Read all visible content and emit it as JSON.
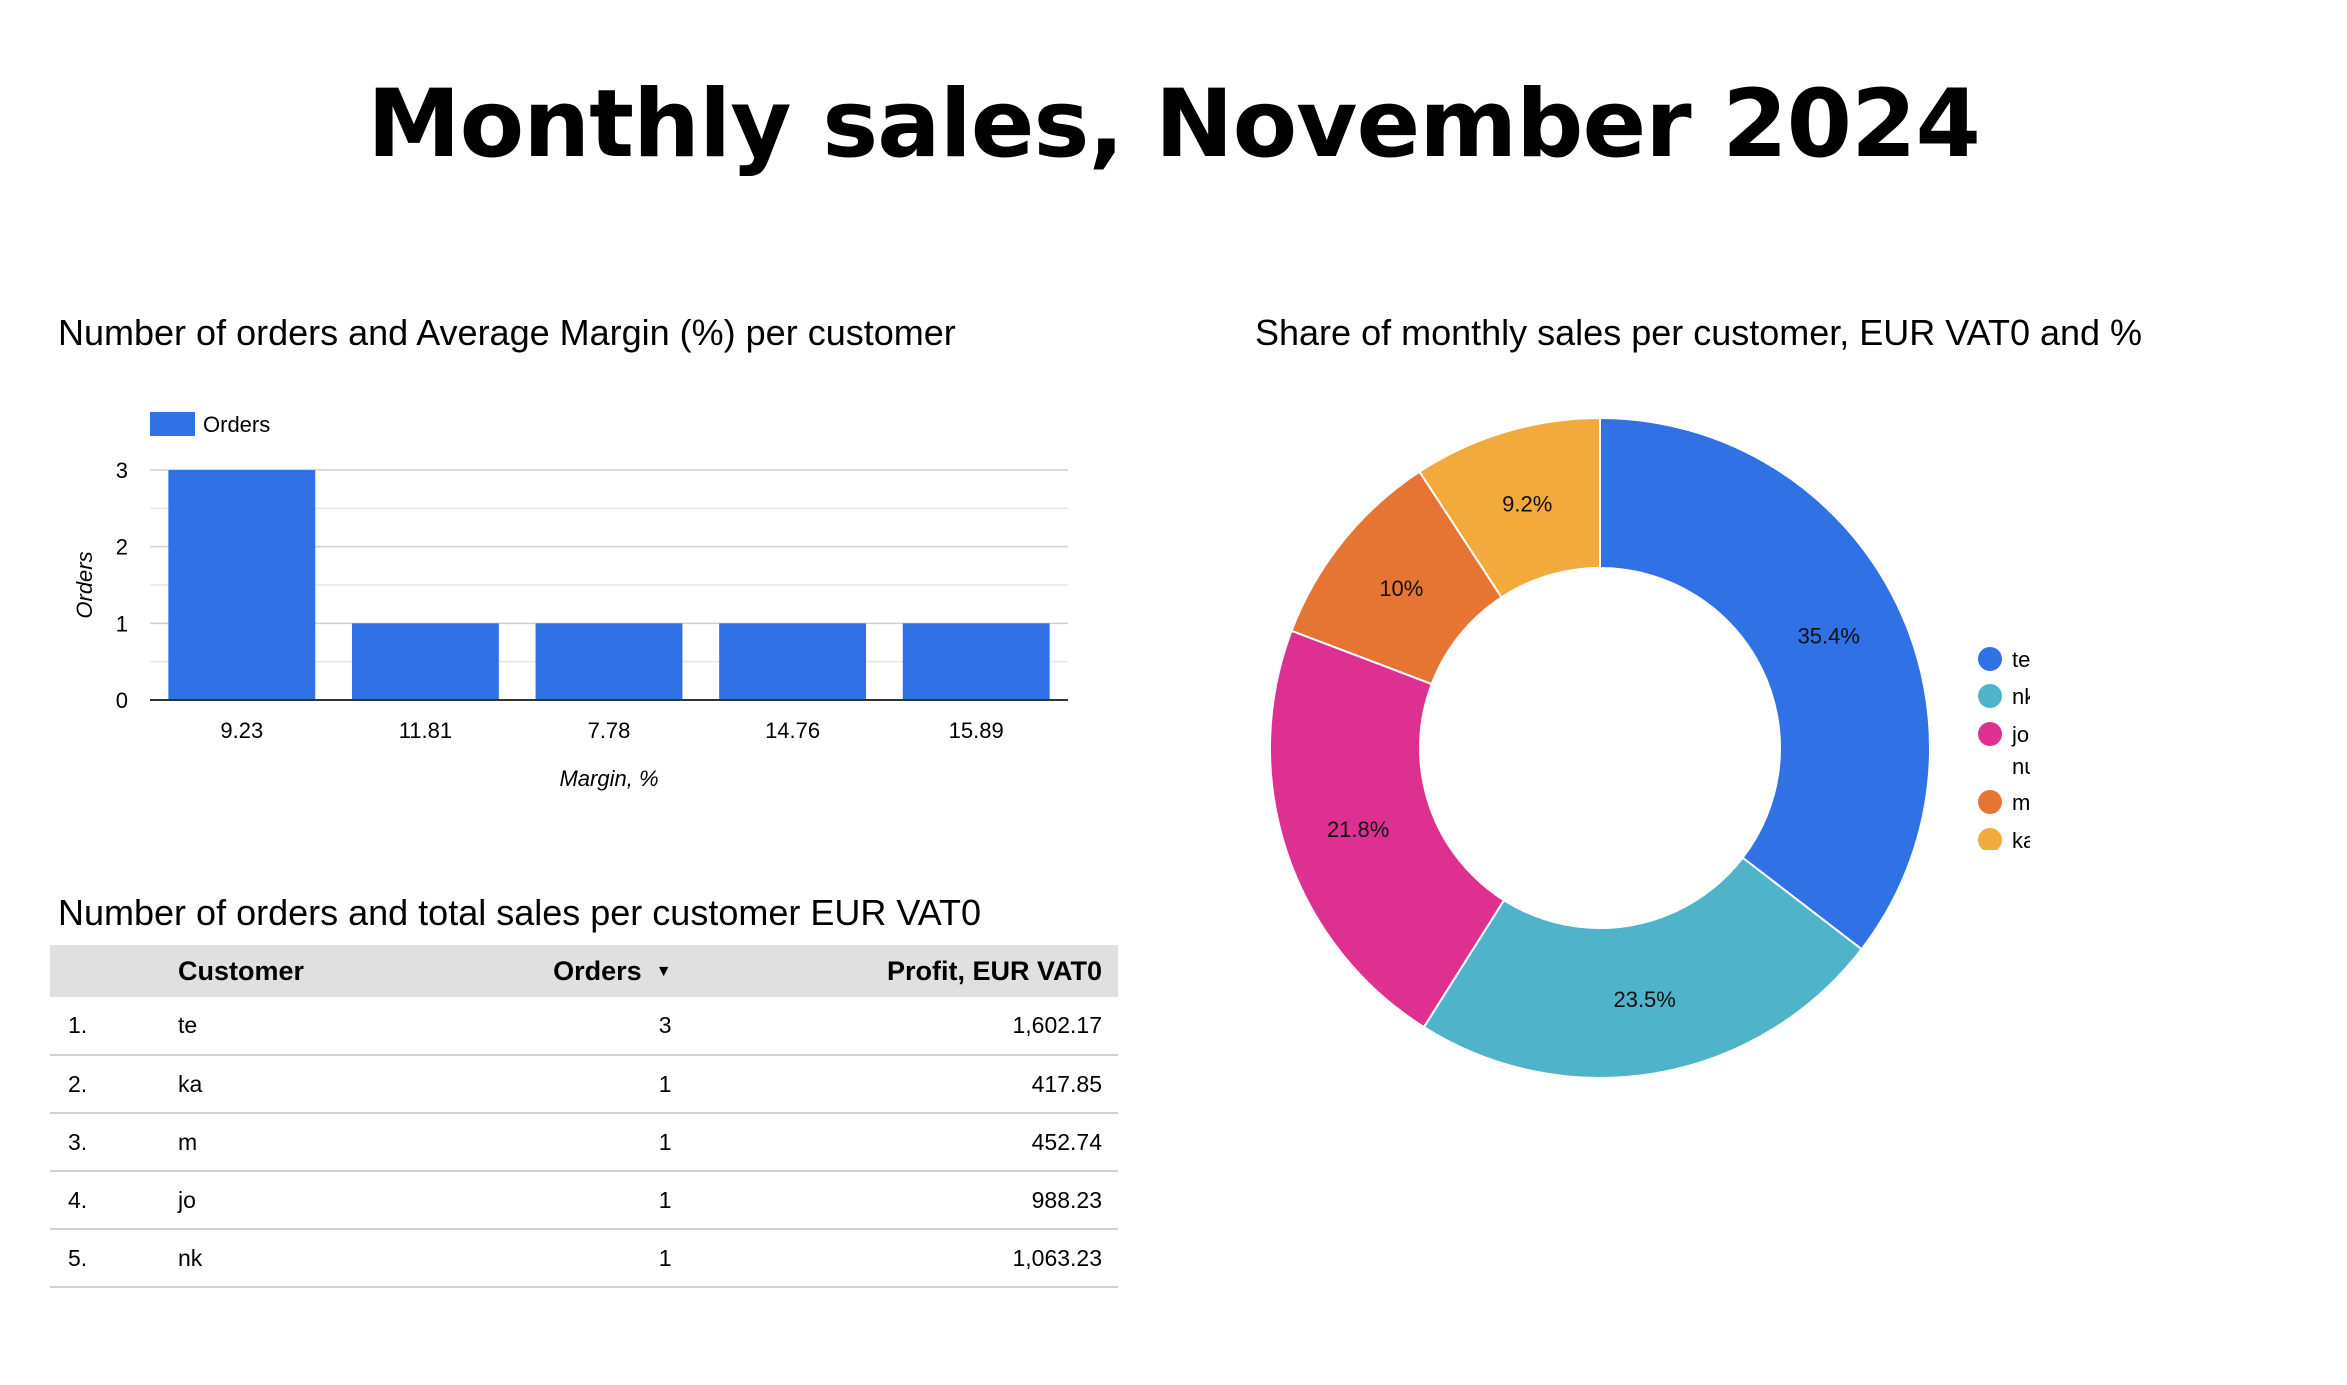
{
  "page": {
    "title": "Monthly sales, November 2024"
  },
  "bar_section": {
    "title": "Number of orders and Average Margin (%) per customer"
  },
  "pie_section": {
    "title": "Share of monthly sales per customer, EUR VAT0 and %"
  },
  "table_section": {
    "title": "Number of orders and total sales per customer EUR VAT0",
    "headers": {
      "customer": "Customer",
      "orders": "Orders",
      "profit": "Profit, EUR VAT0"
    },
    "sort_icon": "sort-descending-icon",
    "rows": [
      {
        "index": "1.",
        "customer": "te",
        "orders": "3",
        "profit": "1,602.17"
      },
      {
        "index": "2.",
        "customer": "ka",
        "orders": "1",
        "profit": "417.85"
      },
      {
        "index": "3.",
        "customer": "m",
        "orders": "1",
        "profit": "452.74"
      },
      {
        "index": "4.",
        "customer": "jo",
        "orders": "1",
        "profit": "988.23"
      },
      {
        "index": "5.",
        "customer": "nk",
        "orders": "1",
        "profit": "1,063.23"
      }
    ]
  },
  "chart_data": [
    {
      "type": "bar",
      "title": "Number of orders and Average Margin (%) per customer",
      "categories": [
        "9.23",
        "11.81",
        "7.78",
        "14.76",
        "15.89"
      ],
      "series": [
        {
          "name": "Orders",
          "values": [
            3,
            1,
            1,
            1,
            1
          ],
          "color": "#3071e6"
        }
      ],
      "xlabel": "Margin, %",
      "ylabel": "Orders",
      "ylim": [
        0,
        3
      ],
      "yticks": [
        0,
        1,
        2,
        3
      ],
      "grid": true,
      "legend": "top-left"
    },
    {
      "type": "pie",
      "donut": true,
      "title": "Share of monthly sales per customer, EUR VAT0 and %",
      "slices": [
        {
          "label": "te",
          "value": 35.4,
          "display": "35.4%",
          "color": "#3071e6"
        },
        {
          "label": "nk",
          "value": 23.5,
          "display": "23.5%",
          "color": "#4fb4c9"
        },
        {
          "label": "jo",
          "value": 21.8,
          "display": "21.8%",
          "color": "#dd3090"
        },
        {
          "label": "m",
          "value": 10,
          "display": "10%",
          "color": "#e67534"
        },
        {
          "label": "ka",
          "value": 9.2,
          "display": "9.2%",
          "color": "#f2aa3d"
        }
      ],
      "legend_labels": [
        "te",
        "nk",
        "jo",
        "nu",
        "m",
        "ka"
      ],
      "legend": "right"
    }
  ]
}
